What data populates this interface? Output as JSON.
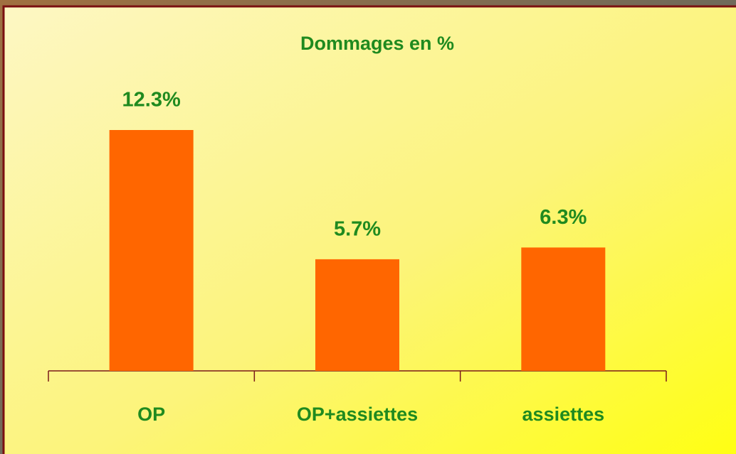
{
  "chart_data": {
    "type": "bar",
    "title": "Dommages en %",
    "categories": [
      "OP",
      "OP+assiettes",
      "assiettes"
    ],
    "values": [
      12.3,
      5.7,
      6.3
    ],
    "value_labels": [
      "12.3%",
      "5.7%",
      "6.3%"
    ],
    "color": "#ff6600"
  }
}
